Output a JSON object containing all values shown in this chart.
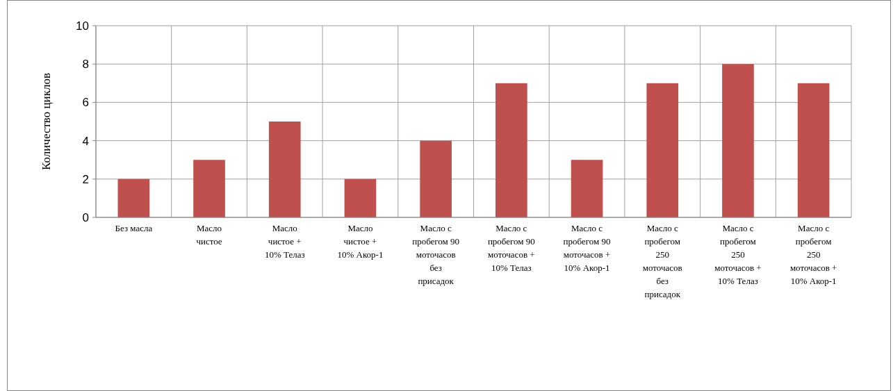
{
  "chart_data": {
    "type": "bar",
    "ylabel": "Количество циклов",
    "categories": [
      "Без масла",
      "Масло чистое",
      "Масло чистое + 10% Телаз",
      "Масло чистое + 10% Акор-1",
      "Масло с пробегом 90 моточасов без присадок",
      "Масло с пробегом 90 моточасов + 10% Телаз",
      "Масло с пробегом 90 моточасов + 10% Акор-1",
      "Масло с пробегом 250 моточасов без присадок",
      "Масло с пробегом 250 моточасов + 10% Телаз",
      "Масло с пробегом 250 моточасов + 10% Акор-1"
    ],
    "values": [
      2,
      3,
      5,
      2,
      4,
      7,
      3,
      7,
      8,
      7
    ],
    "color": "#c0504d",
    "ylim": [
      0,
      10
    ],
    "yticks": [
      0,
      2,
      4,
      6,
      8,
      10
    ],
    "grid": true
  }
}
